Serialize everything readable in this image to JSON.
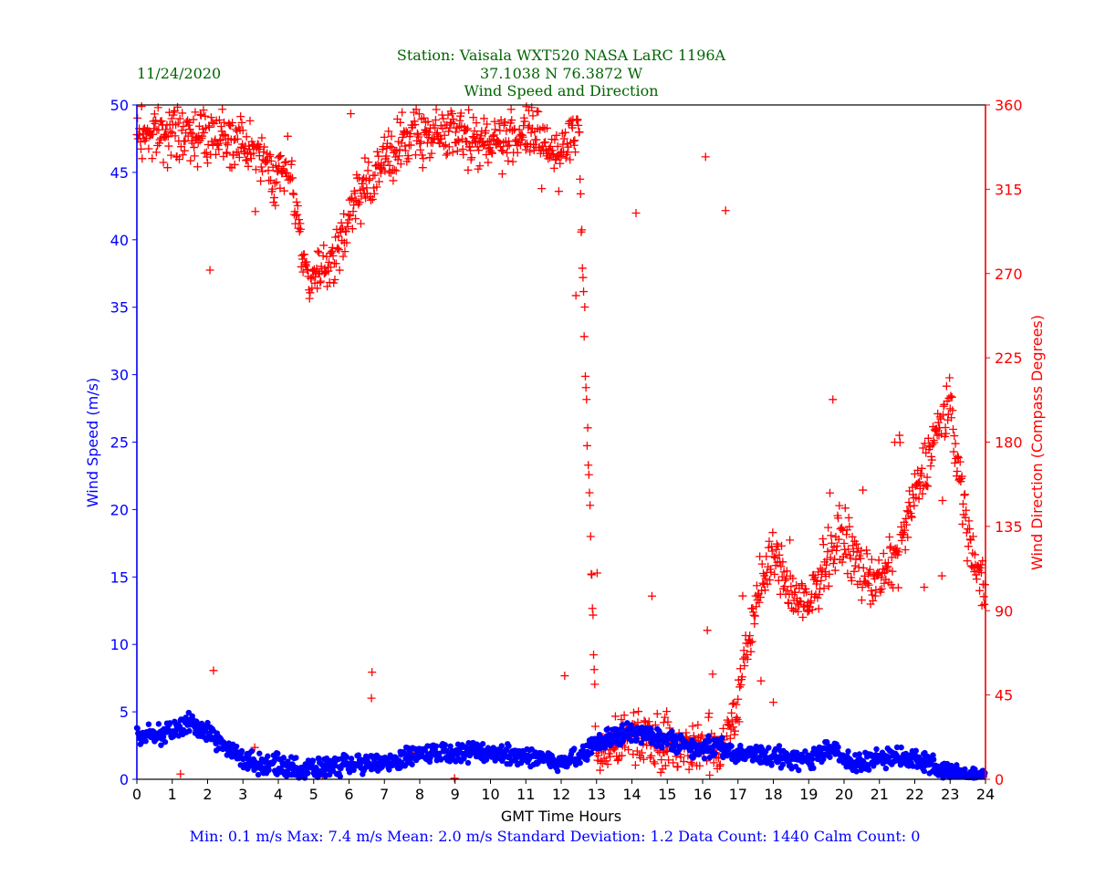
{
  "chart_data": {
    "type": "scatter",
    "date": "11/24/2020",
    "title_lines": [
      "Station:  Vaisala WXT520  NASA LaRC 1196A",
      "37.1038 N 76.3872 W",
      "Wind Speed and Direction"
    ],
    "xlabel": "GMT Time Hours",
    "ylabel_left": "Wind Speed (m/s)",
    "ylabel_right": "Wind Direction (Compass Degrees)",
    "xlim": [
      0,
      24
    ],
    "ylim_left": [
      0,
      50
    ],
    "ylim_right": [
      0,
      360
    ],
    "x_ticks": [
      "0",
      "1",
      "2",
      "3",
      "4",
      "5",
      "6",
      "7",
      "8",
      "9",
      "10",
      "11",
      "12",
      "13",
      "14",
      "15",
      "16",
      "17",
      "18",
      "19",
      "20",
      "21",
      "22",
      "23",
      "24"
    ],
    "y_ticks_left": [
      "0",
      "5",
      "10",
      "15",
      "20",
      "25",
      "30",
      "35",
      "40",
      "45",
      "50"
    ],
    "y_ticks_right": [
      "0",
      "45",
      "90",
      "135",
      "180",
      "225",
      "270",
      "315",
      "360"
    ],
    "summary": "Min: 0.1 m/s   Max: 7.4 m/s   Mean: 2.0 m/s  Standard Deviation: 1.2  Data Count: 1440  Calm Count:  0",
    "colors": {
      "speed": "#0000ff",
      "direction": "#ff0000",
      "title": "#006400",
      "axis": "#000000"
    },
    "series": [
      {
        "name": "Wind Speed (m/s)",
        "marker": "dot",
        "axis": "left",
        "trend_hours": [
          0,
          0.5,
          1,
          1.5,
          2,
          2.5,
          3,
          3.5,
          4,
          4.5,
          5,
          6,
          7,
          7.5,
          8,
          9,
          10,
          11,
          12,
          12.5,
          13,
          13.5,
          14,
          14.5,
          15,
          15.5,
          16,
          16.5,
          17,
          17.5,
          18,
          18.5,
          19,
          19.5,
          20,
          20.5,
          21,
          21.5,
          22,
          22.5,
          23,
          23.5,
          24
        ],
        "trend_values": [
          3.5,
          3.2,
          3.6,
          4.2,
          3.5,
          2.3,
          1.5,
          1.1,
          1.1,
          0.8,
          0.8,
          1.0,
          1.2,
          1.6,
          1.9,
          2.1,
          1.9,
          1.8,
          1.3,
          1.6,
          2.6,
          3.3,
          3.4,
          3.3,
          2.9,
          2.6,
          2.3,
          2.4,
          1.8,
          1.9,
          1.7,
          1.4,
          1.5,
          2.2,
          1.6,
          1.2,
          1.6,
          1.7,
          1.5,
          1.1,
          0.4,
          0.3,
          0.4
        ],
        "scatter_spread": 0.9
      },
      {
        "name": "Wind Direction (Compass Degrees)",
        "marker": "plus",
        "axis": "right",
        "trend_hours": [
          0,
          1,
          2,
          2.5,
          3,
          3.5,
          4,
          4.3,
          4.6,
          4.9,
          5.2,
          5.5,
          5.8,
          6.1,
          6.5,
          7,
          7.5,
          8,
          9,
          10,
          11,
          11.5,
          12,
          12.5,
          13,
          14,
          15,
          15.5,
          16,
          16.5,
          17,
          17.5,
          18,
          18.5,
          19,
          19.5,
          20,
          20.5,
          21,
          21.5,
          22,
          22.5,
          23,
          23.5,
          24
        ],
        "trend_values": [
          345,
          345,
          345,
          345,
          340,
          330,
          320,
          330,
          295,
          260,
          275,
          270,
          290,
          305,
          320,
          330,
          340,
          345,
          345,
          340,
          345,
          340,
          335,
          345,
          15,
          25,
          20,
          18,
          18,
          15,
          40,
          95,
          120,
          100,
          90,
          120,
          130,
          110,
          105,
          120,
          150,
          180,
          200,
          130,
          100
        ],
        "scatter_spread": 14
      }
    ]
  }
}
